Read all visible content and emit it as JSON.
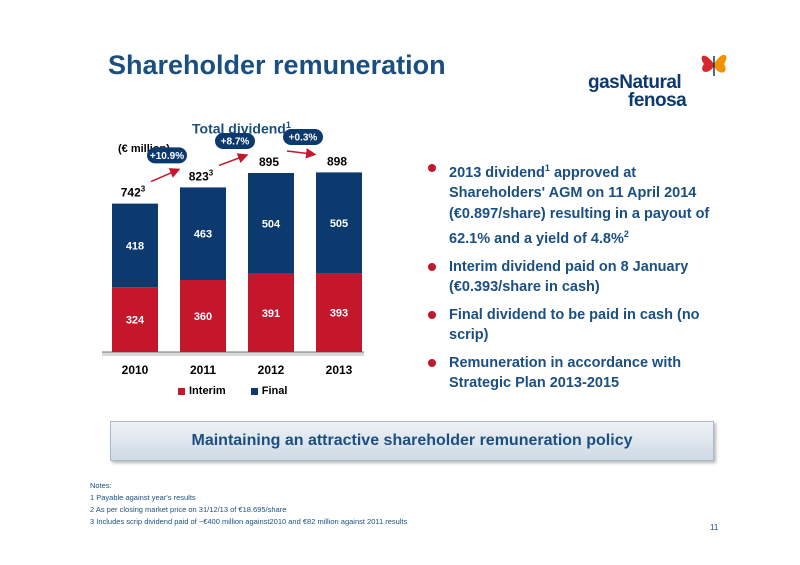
{
  "slide": {
    "title": "Shareholder remuneration",
    "page_number": "11"
  },
  "logo": {
    "line1": "gasNatural",
    "line2": "fenosa",
    "colors": {
      "text": "#0d3a6e",
      "mark_red": "#d7282f",
      "mark_orange": "#f39200"
    }
  },
  "chart_header": {
    "title": "Total dividend",
    "title_sup": "1",
    "unit": "(€ million)"
  },
  "chart_data": {
    "type": "bar",
    "stacked": true,
    "categories": [
      "2010",
      "2011",
      "2012",
      "2013"
    ],
    "series": [
      {
        "name": "Interim",
        "color": "#c4172c",
        "values": [
          324,
          360,
          391,
          393
        ]
      },
      {
        "name": "Final",
        "color": "#0d3a6e",
        "values": [
          418,
          463,
          504,
          505
        ]
      }
    ],
    "totals": [
      {
        "value": "742",
        "sup": "3"
      },
      {
        "value": "823",
        "sup": "3"
      },
      {
        "value": "895",
        "sup": ""
      },
      {
        "value": "898",
        "sup": ""
      }
    ],
    "growth": [
      "+10.9%",
      "+8.7%",
      "+0.3%"
    ],
    "ylim": [
      0,
      900
    ],
    "legend_position": "bottom"
  },
  "bullets": [
    {
      "text": "2013 dividend",
      "sup": "1",
      "text2": " approved at Shareholders' AGM on 11 April 2014 (€0.897/share) resulting in a payout of 62.1% and a yield of 4.8%",
      "sup2": "2"
    },
    {
      "text": "Interim dividend paid on 8 January (€0.393/share in cash)",
      "sup": "",
      "text2": "",
      "sup2": ""
    },
    {
      "text": "Final dividend to be paid in cash (no scrip)",
      "sup": "",
      "text2": "",
      "sup2": ""
    },
    {
      "text": "Remuneration in accordance with Strategic Plan 2013-2015",
      "sup": "",
      "text2": "",
      "sup2": ""
    }
  ],
  "banner": "Maintaining an attractive shareholder remuneration policy",
  "notes": [
    "Notes:",
    "1 Payable against year's results",
    "2 As per closing market  price on 31/12/13 of  €18.695/share",
    "3 Includes scrip dividend paid of ~€400 million against2010 and  €82 million against 2011 results"
  ],
  "colors": {
    "accent_blue": "#1b4f82",
    "bullet_red": "#c4172c",
    "bar_dark_blue": "#0d3a6e"
  }
}
